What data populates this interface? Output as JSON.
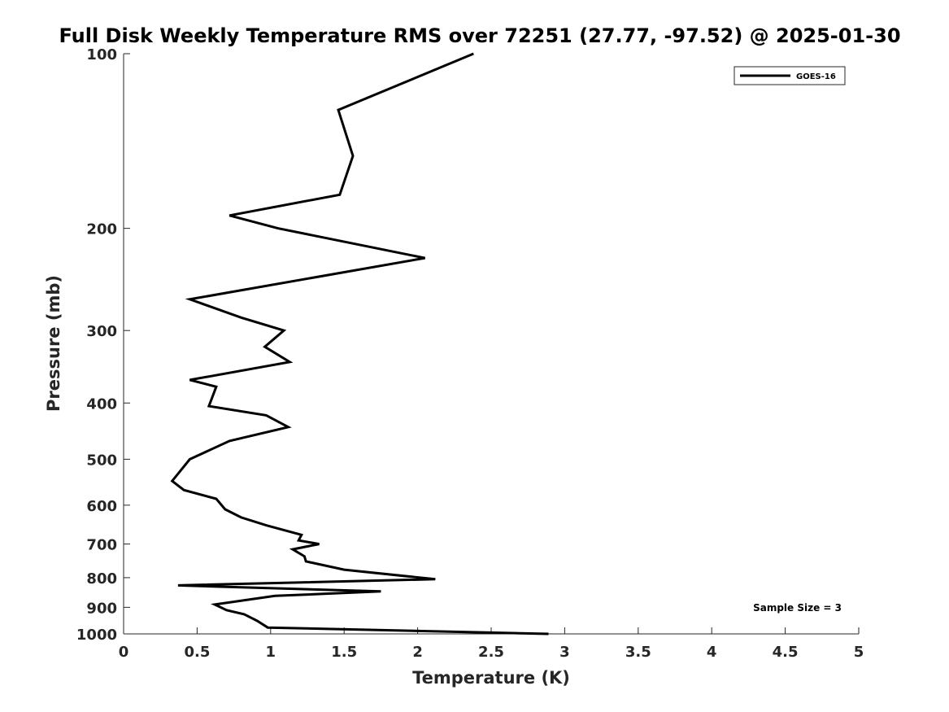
{
  "chart_data": {
    "type": "line",
    "title": "Full Disk Weekly Temperature RMS over 72251 (27.77, -97.52) @ 2025-01-30",
    "xlabel": "Temperature (K)",
    "ylabel": "Pressure (mb)",
    "xlim": [
      0,
      5
    ],
    "ylim": [
      100,
      1000
    ],
    "y_scale": "log",
    "y_reversed": true,
    "x_ticks": [
      "0",
      "0.5",
      "1",
      "1.5",
      "2",
      "2.5",
      "3",
      "3.5",
      "4",
      "4.5",
      "5"
    ],
    "y_ticks": [
      "100",
      "200",
      "300",
      "400",
      "500",
      "600",
      "700",
      "800",
      "900",
      "1000"
    ],
    "grid": false,
    "legend_position": "top-right",
    "series": [
      {
        "name": "GOES-16",
        "color": "#000000",
        "points": [
          [
            2.38,
            100
          ],
          [
            1.46,
            125
          ],
          [
            1.56,
            150
          ],
          [
            1.47,
            175
          ],
          [
            0.72,
            190
          ],
          [
            1.05,
            200
          ],
          [
            2.05,
            225
          ],
          [
            0.45,
            265
          ],
          [
            0.8,
            285
          ],
          [
            1.09,
            300
          ],
          [
            0.96,
            320
          ],
          [
            1.13,
            340
          ],
          [
            0.45,
            365
          ],
          [
            0.63,
            375
          ],
          [
            0.58,
            405
          ],
          [
            0.97,
            420
          ],
          [
            1.12,
            440
          ],
          [
            0.72,
            465
          ],
          [
            0.45,
            500
          ],
          [
            0.33,
            545
          ],
          [
            0.41,
            565
          ],
          [
            0.63,
            585
          ],
          [
            0.69,
            610
          ],
          [
            0.8,
            630
          ],
          [
            0.97,
            650
          ],
          [
            1.21,
            675
          ],
          [
            1.19,
            690
          ],
          [
            1.33,
            700
          ],
          [
            1.15,
            715
          ],
          [
            1.23,
            735
          ],
          [
            1.24,
            750
          ],
          [
            1.5,
            775
          ],
          [
            2.12,
            805
          ],
          [
            0.37,
            825
          ],
          [
            1.75,
            845
          ],
          [
            1.03,
            860
          ],
          [
            0.62,
            890
          ],
          [
            0.7,
            910
          ],
          [
            0.82,
            925
          ],
          [
            0.91,
            950
          ],
          [
            0.98,
            975
          ],
          [
            2.89,
            1000
          ]
        ]
      }
    ],
    "annotations": [
      "Sample Size = 3"
    ]
  }
}
